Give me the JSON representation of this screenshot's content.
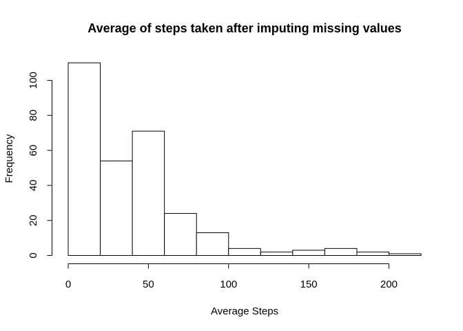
{
  "chart_data": {
    "type": "bar",
    "title": "Average of steps taken after imputing missing values",
    "xlabel": "Average Steps",
    "ylabel": "Frequency",
    "bins": [
      {
        "from": 0,
        "to": 20,
        "value": 110
      },
      {
        "from": 20,
        "to": 40,
        "value": 54
      },
      {
        "from": 40,
        "to": 60,
        "value": 71
      },
      {
        "from": 60,
        "to": 80,
        "value": 24
      },
      {
        "from": 80,
        "to": 100,
        "value": 13
      },
      {
        "from": 100,
        "to": 120,
        "value": 4
      },
      {
        "from": 120,
        "to": 140,
        "value": 2
      },
      {
        "from": 140,
        "to": 160,
        "value": 3
      },
      {
        "from": 160,
        "to": 180,
        "value": 4
      },
      {
        "from": 180,
        "to": 200,
        "value": 2
      },
      {
        "from": 200,
        "to": 220,
        "value": 1
      }
    ],
    "xlim": [
      0,
      220
    ],
    "ylim": [
      0,
      110
    ],
    "x_ticks": [
      0,
      50,
      100,
      150,
      200
    ],
    "x_tick_labels": [
      "0",
      "50",
      "100",
      "150",
      "200"
    ],
    "y_ticks": [
      0,
      20,
      40,
      60,
      80,
      100
    ],
    "y_tick_labels": [
      "0",
      "20",
      "40",
      "60",
      "80",
      "100"
    ],
    "grid": false,
    "bar_fill": "#ffffff",
    "bar_stroke": "#000000"
  }
}
